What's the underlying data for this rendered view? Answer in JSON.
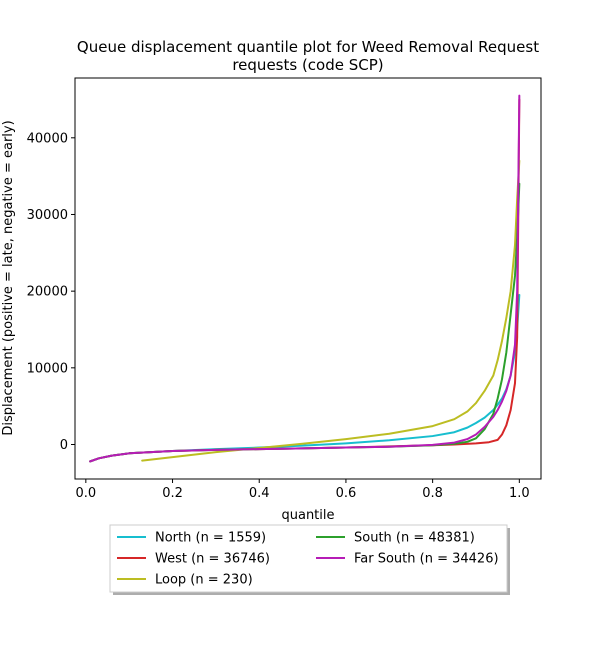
{
  "chart_data": {
    "type": "line",
    "title": "Queue displacement quantile plot for Weed Removal Request",
    "subtitle": "requests (code SCP)",
    "xlabel": "quantile",
    "ylabel": "Displacement (positive = late, negative = early)",
    "xlim": [
      -0.025,
      1.05
    ],
    "ylim": [
      -4500,
      47800
    ],
    "xticks": [
      0.0,
      0.2,
      0.4,
      0.6,
      0.8,
      1.0
    ],
    "xtick_labels": [
      "0.0",
      "0.2",
      "0.4",
      "0.6",
      "0.8",
      "1.0"
    ],
    "yticks": [
      0,
      10000,
      20000,
      30000,
      40000
    ],
    "ytick_labels": [
      "0",
      "10000",
      "20000",
      "30000",
      "40000"
    ],
    "grid": false,
    "legend_position": "bottom-center",
    "legend_columns": 2,
    "series": [
      {
        "name": "North (n = 1559)",
        "color": "#17becf",
        "x": [
          0.01,
          0.03,
          0.06,
          0.1,
          0.2,
          0.3,
          0.4,
          0.5,
          0.6,
          0.7,
          0.8,
          0.85,
          0.88,
          0.9,
          0.92,
          0.94,
          0.95,
          0.96,
          0.97,
          0.98,
          0.99,
          0.995,
          1.0
        ],
        "y": [
          -2200,
          -1800,
          -1450,
          -1150,
          -850,
          -600,
          -400,
          -150,
          150,
          550,
          1100,
          1600,
          2200,
          2800,
          3500,
          4500,
          5200,
          6000,
          7200,
          9000,
          12000,
          15000,
          19500
        ]
      },
      {
        "name": "West (n = 36746)",
        "color": "#d62728",
        "x": [
          0.01,
          0.03,
          0.06,
          0.1,
          0.2,
          0.3,
          0.4,
          0.5,
          0.6,
          0.7,
          0.8,
          0.85,
          0.9,
          0.93,
          0.95,
          0.96,
          0.97,
          0.98,
          0.99,
          0.995,
          1.0
        ],
        "y": [
          -2200,
          -1800,
          -1450,
          -1150,
          -850,
          -700,
          -600,
          -500,
          -400,
          -250,
          -100,
          0,
          150,
          300,
          600,
          1300,
          2500,
          4500,
          8000,
          14000,
          45000
        ]
      },
      {
        "name": "Loop (n = 230)",
        "color": "#bcbd22",
        "x": [
          0.13,
          0.2,
          0.3,
          0.4,
          0.5,
          0.6,
          0.7,
          0.8,
          0.85,
          0.88,
          0.9,
          0.92,
          0.94,
          0.95,
          0.96,
          0.97,
          0.98,
          0.99,
          0.995,
          1.0
        ],
        "y": [
          -2100,
          -1650,
          -1000,
          -450,
          100,
          700,
          1400,
          2400,
          3300,
          4300,
          5400,
          7000,
          9000,
          11000,
          13500,
          16500,
          20000,
          26000,
          32000,
          37000
        ]
      },
      {
        "name": "South (n = 48381)",
        "color": "#2ca02c",
        "x": [
          0.01,
          0.03,
          0.06,
          0.1,
          0.2,
          0.3,
          0.4,
          0.5,
          0.6,
          0.7,
          0.8,
          0.85,
          0.88,
          0.9,
          0.92,
          0.94,
          0.95,
          0.96,
          0.97,
          0.98,
          0.99,
          0.995,
          1.0
        ],
        "y": [
          -2200,
          -1800,
          -1450,
          -1150,
          -850,
          -700,
          -600,
          -500,
          -400,
          -300,
          -100,
          100,
          350,
          800,
          2000,
          4000,
          6000,
          8500,
          12000,
          17000,
          22000,
          27000,
          34000
        ]
      },
      {
        "name": "Far South (n = 34426)",
        "color": "#b61cb6",
        "x": [
          0.01,
          0.03,
          0.06,
          0.1,
          0.2,
          0.3,
          0.4,
          0.5,
          0.6,
          0.7,
          0.8,
          0.85,
          0.88,
          0.9,
          0.92,
          0.94,
          0.95,
          0.96,
          0.97,
          0.98,
          0.99,
          0.995,
          1.0
        ],
        "y": [
          -2200,
          -1800,
          -1450,
          -1150,
          -850,
          -700,
          -600,
          -500,
          -400,
          -300,
          -50,
          250,
          700,
          1300,
          2300,
          3600,
          4500,
          5600,
          7000,
          9000,
          13000,
          20000,
          45500
        ]
      }
    ]
  }
}
